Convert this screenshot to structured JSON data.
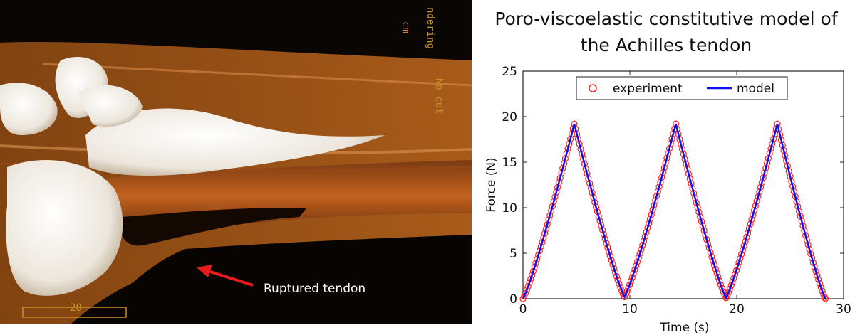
{
  "figure": {
    "scan_annotation": "Ruptured tendon",
    "scan_overlay_texts": [
      "cm",
      "ndering",
      "No cut"
    ],
    "scan_scale_label": "20",
    "colors": {
      "tendon": "#b5561a",
      "bone": "#f2eee8",
      "arrow": "#e81c1c",
      "background": "#0a0604"
    }
  },
  "chart_data": {
    "type": "scatter",
    "title_line1": "Poro-viscoelastic constitutive model of",
    "title_line2": "the Achilles tendon",
    "xlabel": "Time (s)",
    "ylabel": "Force (N)",
    "xlim": [
      0,
      30
    ],
    "ylim": [
      0,
      25
    ],
    "xticks": [
      0,
      10,
      20,
      30
    ],
    "yticks": [
      0,
      5,
      10,
      15,
      20,
      25
    ],
    "grid": false,
    "legend_position": "top-center",
    "series": [
      {
        "name": "experiment",
        "style": "circles",
        "color": "#ff2020",
        "x": [
          0,
          4.8,
          9.5,
          14.3,
          19.0,
          23.8,
          28.3
        ],
        "y": [
          0,
          19.2,
          0.2,
          19.2,
          0.1,
          19.2,
          0
        ]
      },
      {
        "name": "model",
        "style": "line",
        "color": "#1010ee",
        "x": [
          0,
          4.8,
          9.5,
          14.3,
          19.0,
          23.8,
          28.3
        ],
        "y": [
          0,
          19.2,
          0.2,
          19.2,
          0.1,
          19.2,
          0
        ]
      }
    ]
  }
}
